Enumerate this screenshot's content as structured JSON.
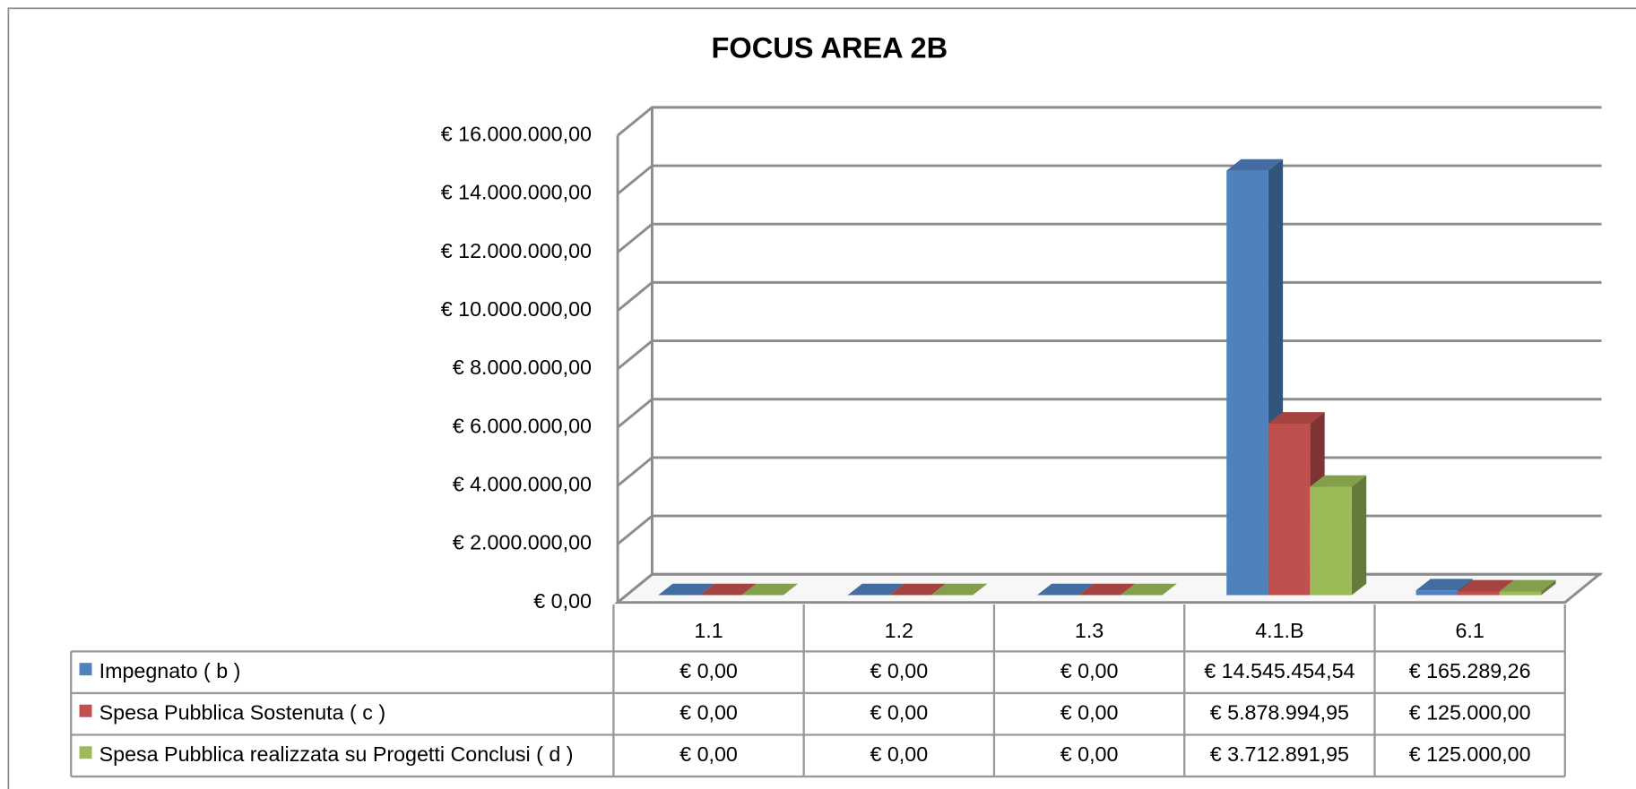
{
  "chart_data": {
    "type": "bar",
    "title": "FOCUS AREA 2B",
    "categories": [
      "1.1",
      "1.2",
      "1.3",
      "4.1.B",
      "6.1"
    ],
    "series": [
      {
        "name": "Impegnato ( b )",
        "color": "#4f81bd",
        "values": [
          0,
          0,
          0,
          14545454.54,
          165289.26
        ],
        "value_labels": [
          "€ 0,00",
          "€ 0,00",
          "€ 0,00",
          "€ 14.545.454,54",
          "€ 165.289,26"
        ]
      },
      {
        "name": "Spesa Pubblica Sostenuta ( c )",
        "color": "#c0504d",
        "values": [
          0,
          0,
          0,
          5878994.95,
          125000
        ],
        "value_labels": [
          "€ 0,00",
          "€ 0,00",
          "€ 0,00",
          "€ 5.878.994,95",
          "€ 125.000,00"
        ]
      },
      {
        "name": "Spesa Pubblica realizzata su Progetti Conclusi ( d )",
        "color": "#9bbb59",
        "values": [
          0,
          0,
          0,
          3712891.95,
          125000
        ],
        "value_labels": [
          "€ 0,00",
          "€ 0,00",
          "€ 0,00",
          "€ 3.712.891,95",
          "€ 125.000,00"
        ]
      }
    ],
    "ylim": [
      0,
      16000000
    ],
    "yticks": [
      {
        "value": 0,
        "label": "€ 0,00"
      },
      {
        "value": 2000000,
        "label": "€ 2.000.000,00"
      },
      {
        "value": 4000000,
        "label": "€ 4.000.000,00"
      },
      {
        "value": 6000000,
        "label": "€ 6.000.000,00"
      },
      {
        "value": 8000000,
        "label": "€ 8.000.000,00"
      },
      {
        "value": 10000000,
        "label": "€ 10.000.000,00"
      },
      {
        "value": 12000000,
        "label": "€ 12.000.000,00"
      },
      {
        "value": 14000000,
        "label": "€ 14.000.000,00"
      },
      {
        "value": 16000000,
        "label": "€ 16.000.000,00"
      }
    ],
    "grid": true
  }
}
